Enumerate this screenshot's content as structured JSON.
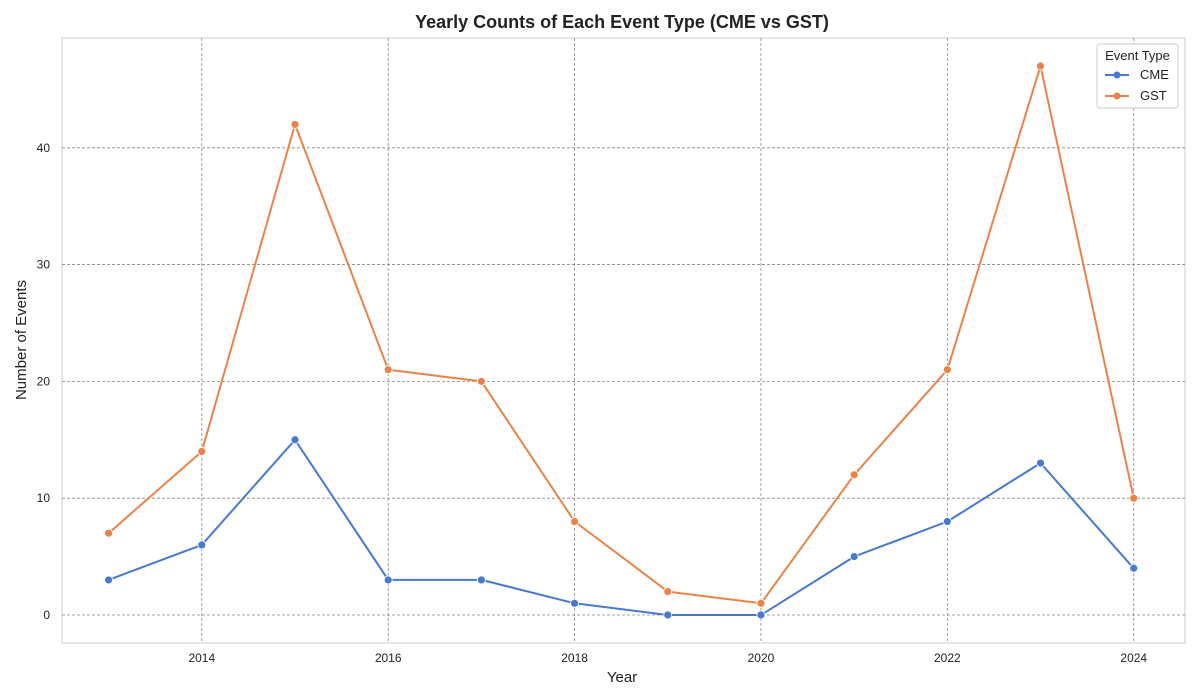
{
  "chart_data": {
    "type": "line",
    "title": "Yearly Counts of Each Event Type (CME vs GST)",
    "xlabel": "Year",
    "ylabel": "Number of Events",
    "x": [
      2013,
      2014,
      2015,
      2016,
      2017,
      2018,
      2019,
      2020,
      2021,
      2022,
      2023,
      2024
    ],
    "xlim": [
      2012.5,
      2024.55
    ],
    "ylim": [
      -2.4,
      49.4
    ],
    "xticks": [
      2014,
      2016,
      2018,
      2020,
      2022,
      2024
    ],
    "yticks": [
      0,
      10,
      20,
      30,
      40
    ],
    "grid": true,
    "legend": {
      "title": "Event Type",
      "placement": "top-right"
    },
    "series": [
      {
        "name": "CME",
        "color": "#4878cf",
        "values": [
          3,
          6,
          15,
          3,
          3,
          1,
          0,
          0,
          5,
          8,
          13,
          4
        ]
      },
      {
        "name": "GST",
        "color": "#e8844a",
        "values": [
          7,
          14,
          42,
          21,
          20,
          8,
          2,
          1,
          12,
          21,
          47,
          10
        ]
      }
    ]
  }
}
